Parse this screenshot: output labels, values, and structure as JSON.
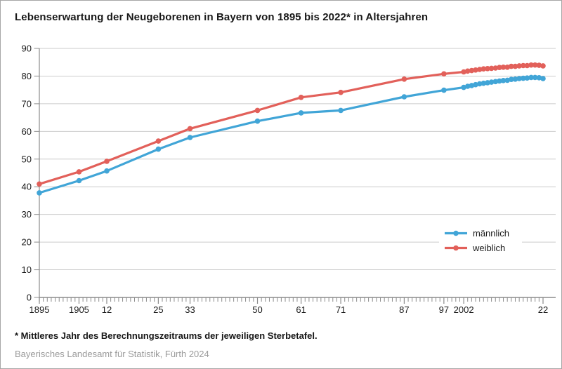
{
  "header": {
    "title": "Lebenserwartung der Neugeborenen in Bayern von 1895 bis 2022* in Altersjahren"
  },
  "footnote": "* Mittleres Jahr des Berechnungszeitraums der jeweiligen Sterbetafel.",
  "source": "Bayerisches Landesamt für Statistik, Fürth 2024",
  "colors": {
    "maennlich": "#41a5d7",
    "weiblich": "#e2605a",
    "grid": "#cbcbcb",
    "axis": "#8c8c8c",
    "text": "#1a1a1a",
    "source_text": "#9b9b9b",
    "card_border": "#a6a6a6",
    "background": "#ffffff"
  },
  "chart_data": {
    "type": "line",
    "title": "Lebenserwartung der Neugeborenen in Bayern von 1895 bis 2022* in Altersjahren",
    "xlabel": "",
    "ylabel": "",
    "x_range": [
      1895,
      2022
    ],
    "ylim": [
      0,
      90
    ],
    "y_ticks": [
      0,
      10,
      20,
      30,
      40,
      50,
      60,
      70,
      80,
      90
    ],
    "grid": "horizontal",
    "legend": {
      "position": "inside-right"
    },
    "x_tick_labels": [
      {
        "x": 1895,
        "label": "1895"
      },
      {
        "x": 1905,
        "label": "1905"
      },
      {
        "x": 1912,
        "label": "12"
      },
      {
        "x": 1925,
        "label": "25"
      },
      {
        "x": 1933,
        "label": "33"
      },
      {
        "x": 1950,
        "label": "50"
      },
      {
        "x": 1961,
        "label": "61"
      },
      {
        "x": 1971,
        "label": "71"
      },
      {
        "x": 1987,
        "label": "87"
      },
      {
        "x": 1997,
        "label": "97"
      },
      {
        "x": 2002,
        "label": "2002"
      },
      {
        "x": 2022,
        "label": "22"
      }
    ],
    "series": [
      {
        "name": "männlich",
        "color": "#41a5d7",
        "x": [
          1895,
          1905,
          1912,
          1925,
          1933,
          1950,
          1961,
          1971,
          1987,
          1997,
          2002,
          2003,
          2004,
          2005,
          2006,
          2007,
          2008,
          2009,
          2010,
          2011,
          2012,
          2013,
          2014,
          2015,
          2016,
          2017,
          2018,
          2019,
          2020,
          2021,
          2022
        ],
        "values": [
          37.8,
          42.2,
          45.7,
          53.6,
          57.8,
          63.7,
          66.7,
          67.6,
          72.5,
          74.9,
          75.9,
          76.3,
          76.6,
          76.9,
          77.2,
          77.4,
          77.6,
          77.8,
          78.0,
          78.2,
          78.4,
          78.5,
          78.8,
          78.9,
          79.1,
          79.2,
          79.3,
          79.5,
          79.5,
          79.4,
          79.1
        ]
      },
      {
        "name": "weiblich",
        "color": "#e2605a",
        "x": [
          1895,
          1905,
          1912,
          1925,
          1933,
          1950,
          1961,
          1971,
          1987,
          1997,
          2002,
          2003,
          2004,
          2005,
          2006,
          2007,
          2008,
          2009,
          2010,
          2011,
          2012,
          2013,
          2014,
          2015,
          2016,
          2017,
          2018,
          2019,
          2020,
          2021,
          2022
        ],
        "values": [
          41.0,
          45.4,
          49.2,
          56.5,
          61.0,
          67.6,
          72.3,
          74.1,
          78.9,
          80.8,
          81.5,
          81.8,
          82.0,
          82.2,
          82.4,
          82.6,
          82.7,
          82.8,
          82.9,
          83.1,
          83.2,
          83.2,
          83.5,
          83.5,
          83.7,
          83.8,
          83.8,
          84.0,
          84.0,
          83.9,
          83.7
        ]
      }
    ]
  }
}
